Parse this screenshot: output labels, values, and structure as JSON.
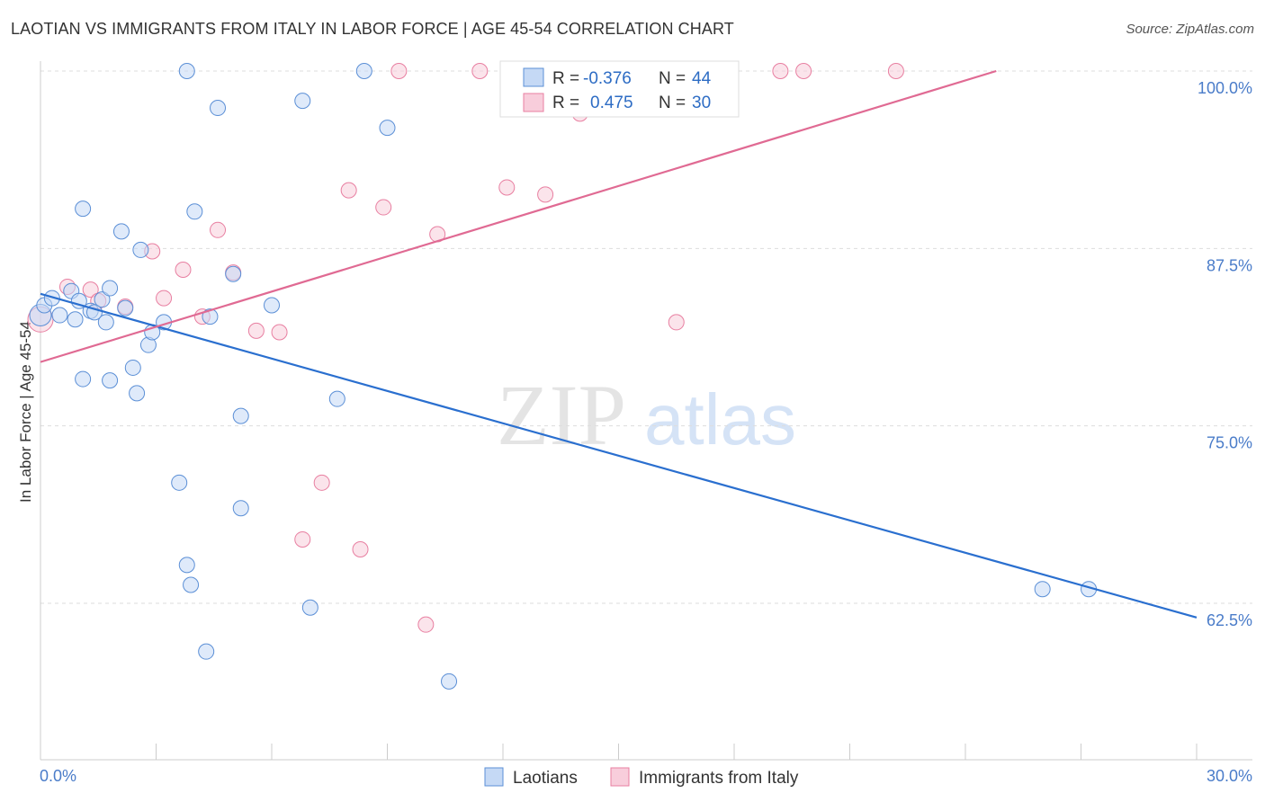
{
  "title": "LAOTIAN VS IMMIGRANTS FROM ITALY IN LABOR FORCE | AGE 45-54 CORRELATION CHART",
  "source": "Source: ZipAtlas.com",
  "colors": {
    "blue": "#5b8fd6",
    "blue_fill": "#c5d9f5",
    "blue_line": "#2a6fcf",
    "pink": "#e87fa1",
    "pink_fill": "#f8cddb",
    "pink_line": "#e06a93",
    "grid": "#dddddd",
    "tick_text": "#4a7cc9"
  },
  "legend": {
    "r_label": "R =",
    "n_label": "N =",
    "blue_r": "-0.376",
    "blue_n": "44",
    "pink_r": "0.475",
    "pink_n": "30"
  },
  "watermark": {
    "zip": "ZIP",
    "atlas": "atlas"
  },
  "chart_data": {
    "type": "scatter",
    "title": "LAOTIAN VS IMMIGRANTS FROM ITALY IN LABOR FORCE | AGE 45-54 CORRELATION CHART",
    "xlabel": "",
    "ylabel": "In Labor Force | Age 45-54",
    "xlim": [
      0,
      30
    ],
    "ylim": [
      50,
      100
    ],
    "x_tick_labels": [
      "0.0%",
      "30.0%"
    ],
    "y_ticks": [
      62.5,
      75.0,
      87.5,
      100.0
    ],
    "y_tick_labels": [
      "62.5%",
      "75.0%",
      "87.5%",
      "100.0%"
    ],
    "grid": true,
    "legend_position": "bottom",
    "series": [
      {
        "name": "Laotians",
        "color": "#5b8fd6",
        "trend": {
          "x": [
            0,
            30
          ],
          "y": [
            84.3,
            61.5
          ]
        },
        "points": [
          [
            0.0,
            82.8
          ],
          [
            0.1,
            83.5
          ],
          [
            0.3,
            84.0
          ],
          [
            0.5,
            82.8
          ],
          [
            0.8,
            84.5
          ],
          [
            0.9,
            82.5
          ],
          [
            1.0,
            83.8
          ],
          [
            1.1,
            78.3
          ],
          [
            1.1,
            90.3
          ],
          [
            1.3,
            83.1
          ],
          [
            1.4,
            83.0
          ],
          [
            1.6,
            83.9
          ],
          [
            1.7,
            82.3
          ],
          [
            1.8,
            84.7
          ],
          [
            1.8,
            78.2
          ],
          [
            2.1,
            88.7
          ],
          [
            2.2,
            83.3
          ],
          [
            2.4,
            79.1
          ],
          [
            2.5,
            77.3
          ],
          [
            2.6,
            87.4
          ],
          [
            2.8,
            80.7
          ],
          [
            2.9,
            81.6
          ],
          [
            3.2,
            82.3
          ],
          [
            3.6,
            71.0
          ],
          [
            3.8,
            65.2
          ],
          [
            3.8,
            100.0
          ],
          [
            3.9,
            63.8
          ],
          [
            4.0,
            90.1
          ],
          [
            4.3,
            59.1
          ],
          [
            4.4,
            82.7
          ],
          [
            4.6,
            97.4
          ],
          [
            5.0,
            85.7
          ],
          [
            5.2,
            75.7
          ],
          [
            5.2,
            69.2
          ],
          [
            6.0,
            83.5
          ],
          [
            6.8,
            97.9
          ],
          [
            7.0,
            62.2
          ],
          [
            7.7,
            76.9
          ],
          [
            8.4,
            100.0
          ],
          [
            9.0,
            96.0
          ],
          [
            10.6,
            57.0
          ],
          [
            15.3,
            100.0
          ],
          [
            26.0,
            63.5
          ],
          [
            27.2,
            63.5
          ]
        ]
      },
      {
        "name": "Immigrants from Italy",
        "color": "#e87fa1",
        "trend": {
          "x": [
            0,
            24.8
          ],
          "y": [
            79.5,
            100.0
          ]
        },
        "points": [
          [
            0.0,
            82.5
          ],
          [
            0.7,
            84.8
          ],
          [
            1.3,
            84.6
          ],
          [
            1.5,
            83.8
          ],
          [
            2.2,
            83.4
          ],
          [
            2.9,
            87.3
          ],
          [
            3.2,
            84.0
          ],
          [
            3.7,
            86.0
          ],
          [
            4.2,
            82.7
          ],
          [
            4.6,
            88.8
          ],
          [
            5.0,
            85.8
          ],
          [
            5.6,
            81.7
          ],
          [
            6.2,
            81.6
          ],
          [
            6.8,
            67.0
          ],
          [
            7.3,
            71.0
          ],
          [
            8.0,
            91.6
          ],
          [
            8.3,
            66.3
          ],
          [
            8.9,
            90.4
          ],
          [
            9.3,
            100.0
          ],
          [
            10.0,
            61.0
          ],
          [
            10.3,
            88.5
          ],
          [
            11.4,
            100.0
          ],
          [
            12.1,
            91.8
          ],
          [
            13.1,
            91.3
          ],
          [
            14.0,
            97.0
          ],
          [
            16.5,
            82.3
          ],
          [
            17.7,
            100.0
          ],
          [
            19.2,
            100.0
          ],
          [
            19.8,
            100.0
          ],
          [
            22.2,
            100.0
          ]
        ]
      }
    ]
  },
  "bottom_legend": [
    {
      "label": "Laotians"
    },
    {
      "label": "Immigrants from Italy"
    }
  ]
}
